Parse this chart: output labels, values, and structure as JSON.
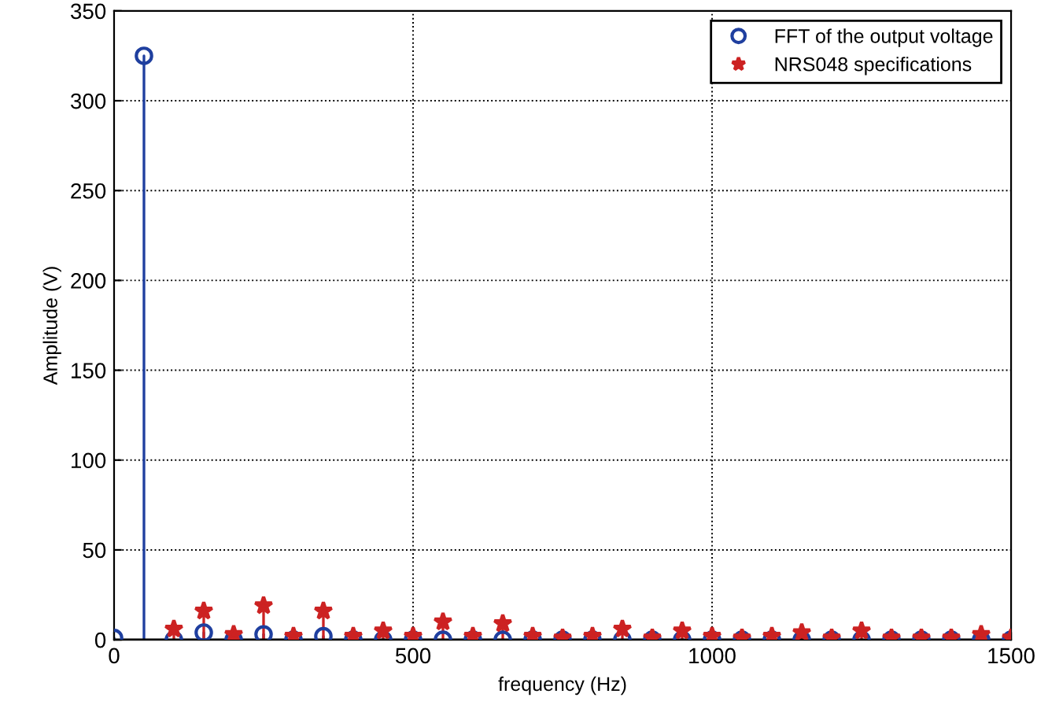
{
  "chart_data": {
    "type": "lollipop",
    "xlabel": "frequency (Hz)",
    "ylabel": "Amplitude (V)",
    "x": [
      0,
      50,
      100,
      150,
      200,
      250,
      300,
      350,
      400,
      450,
      500,
      550,
      600,
      650,
      700,
      750,
      800,
      850,
      900,
      950,
      1000,
      1050,
      1100,
      1150,
      1200,
      1250,
      1300,
      1350,
      1400,
      1450,
      1500
    ],
    "series": [
      {
        "name": "FFT of the output voltage",
        "color": "#1f3f9f",
        "marker": "circle",
        "values": [
          1,
          325,
          0,
          4,
          0,
          3,
          0,
          2,
          0,
          0,
          0,
          0,
          0,
          0,
          0,
          0,
          0,
          0,
          0,
          0,
          0,
          0,
          0,
          0,
          0,
          0,
          0,
          0,
          0,
          0,
          0
        ]
      },
      {
        "name": "NRS048 specifications",
        "color": "#cc2222",
        "marker": "star",
        "values": [
          null,
          null,
          6,
          16,
          3,
          19,
          2,
          16,
          2,
          5,
          2,
          10,
          2,
          9,
          2,
          1,
          2,
          6,
          1,
          5,
          2,
          1,
          2,
          4,
          1,
          5,
          1,
          1,
          1,
          3,
          1
        ]
      }
    ],
    "xlim": [
      0,
      1500
    ],
    "xticks": [
      0,
      500,
      1000,
      1500
    ],
    "ylim": [
      0,
      350
    ],
    "yticks": [
      0,
      50,
      100,
      150,
      200,
      250,
      300,
      350
    ],
    "grid": true,
    "line_style": "dotted",
    "legend": "top right"
  }
}
